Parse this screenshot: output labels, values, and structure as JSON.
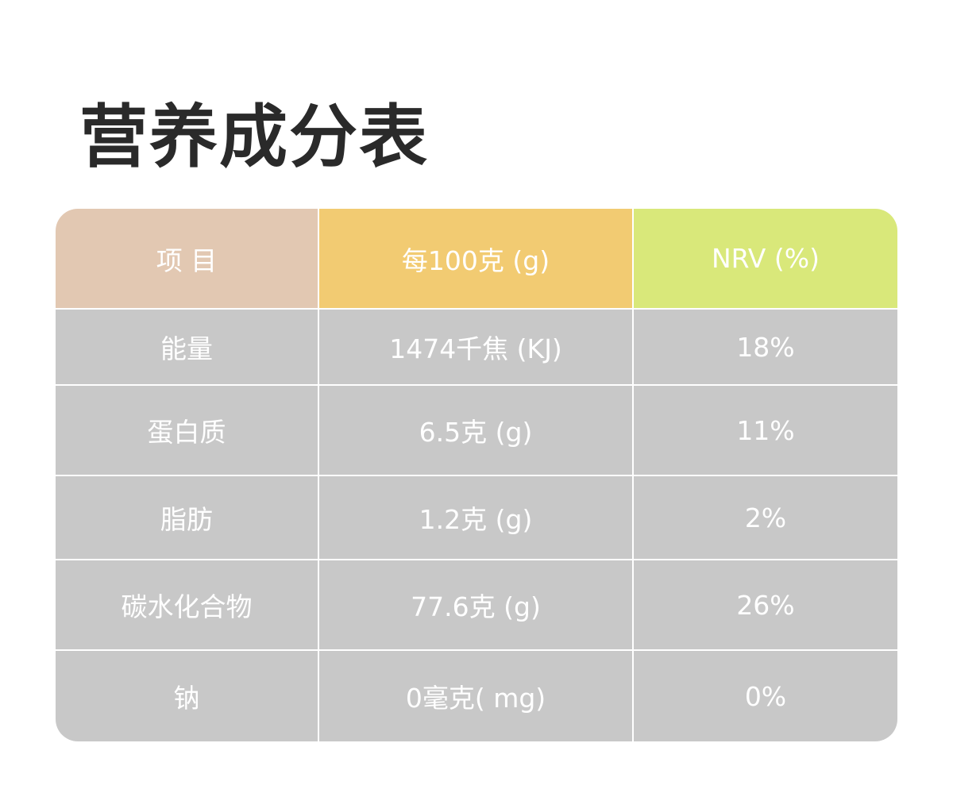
{
  "header": {
    "title": "营养成分表"
  },
  "table": {
    "columns": [
      "项 目",
      "每100克 (g)",
      "NRV (%)"
    ],
    "rows": [
      [
        "能量",
        "1474千焦 (KJ)",
        "18%"
      ],
      [
        "蛋白质",
        "6.5克 (g)",
        "11%"
      ],
      [
        "脂肪",
        "1.2克 (g)",
        "2%"
      ],
      [
        "碳水化合物",
        "77.6克 (g)",
        "26%"
      ],
      [
        "钠",
        "0毫克( mg)",
        "0%"
      ]
    ]
  }
}
